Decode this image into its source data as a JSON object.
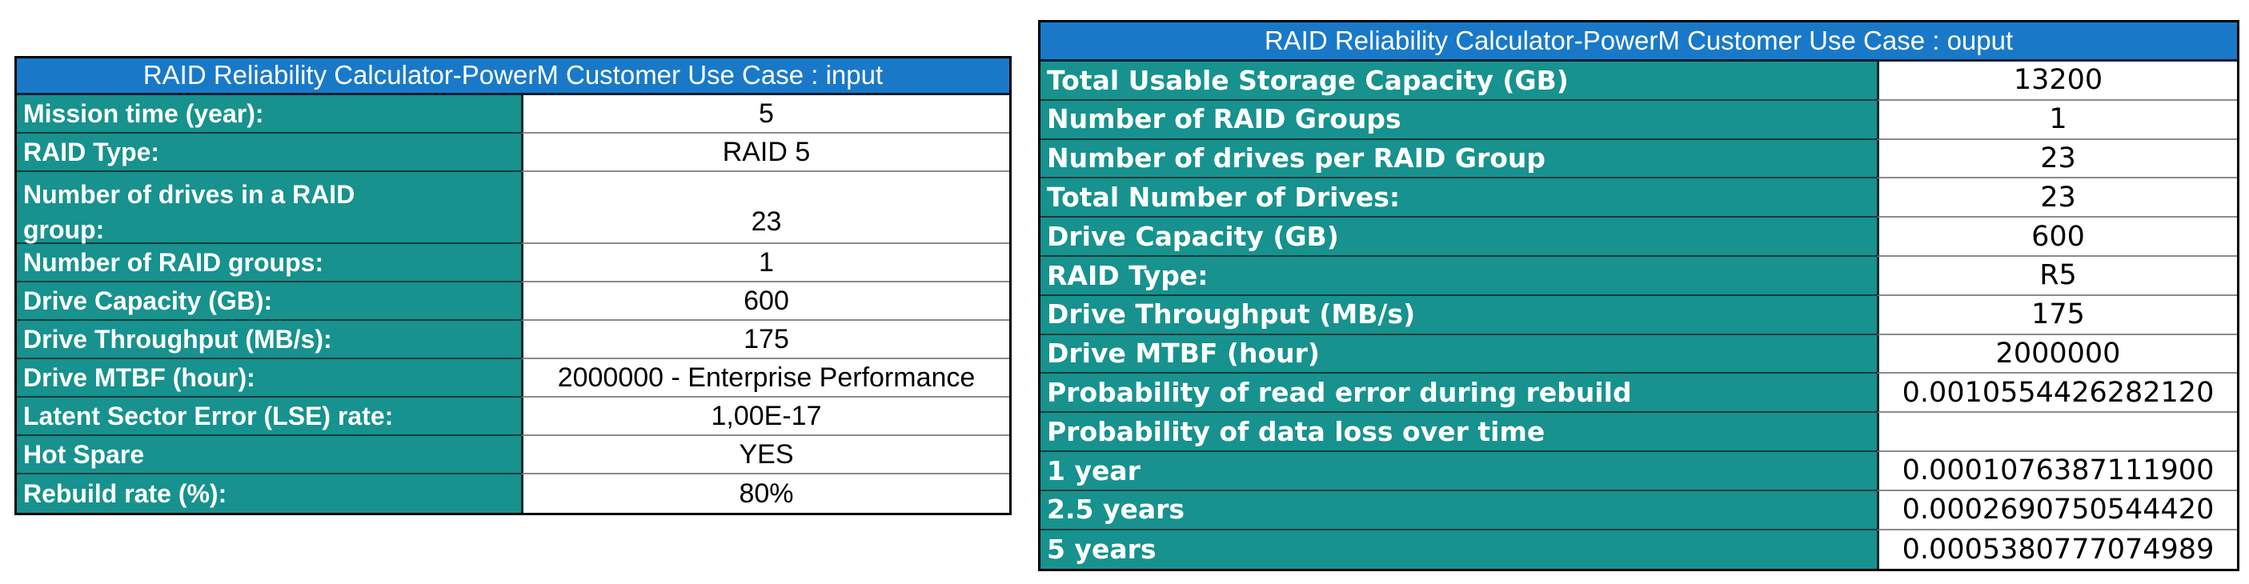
{
  "colors": {
    "header_blue": "#1979C8",
    "label_teal": "#17928E",
    "value_text": "#000000",
    "label_text": "#FFFFFF"
  },
  "input_table": {
    "title": "RAID Reliability Calculator-PowerM Customer Use Case : input",
    "rows": [
      {
        "label": "Mission time (year):",
        "value": "5"
      },
      {
        "label": "RAID Type:",
        "value": "RAID 5"
      },
      {
        "label": "Number of drives in a RAID\ngroup:",
        "value": "23"
      },
      {
        "label": "Number of RAID groups:",
        "value": "1"
      },
      {
        "label": "Drive Capacity (GB):",
        "value": "600"
      },
      {
        "label": "Drive Throughput (MB/s):",
        "value": "175"
      },
      {
        "label": "Drive MTBF (hour):",
        "value": "2000000 - Enterprise Performance"
      },
      {
        "label": "Latent Sector Error (LSE) rate:",
        "value": "1,00E-17"
      },
      {
        "label": "Hot Spare",
        "value": "YES"
      },
      {
        "label": "Rebuild rate (%):",
        "value": "80%"
      }
    ]
  },
  "output_table": {
    "title": "RAID Reliability Calculator-PowerM Customer Use Case : ouput",
    "rows": [
      {
        "label": "Total Usable Storage Capacity (GB)",
        "value": "13200"
      },
      {
        "label": "Number of RAID Groups",
        "value": "1"
      },
      {
        "label": "Number of drives per RAID Group",
        "value": "23"
      },
      {
        "label": "Total Number of Drives:",
        "value": "23"
      },
      {
        "label": "Drive Capacity (GB)",
        "value": "600"
      },
      {
        "label": "RAID Type:",
        "value": "R5"
      },
      {
        "label": "Drive Throughput (MB/s)",
        "value": "175"
      },
      {
        "label": "Drive MTBF (hour)",
        "value": "2000000"
      },
      {
        "label": "Probability of read error during rebuild",
        "value": "0.0010554426282120"
      },
      {
        "label": "Probability of data loss over time",
        "value": ""
      },
      {
        "label": "1 year",
        "value": "0.0001076387111900"
      },
      {
        "label": "2.5 years",
        "value": "0.0002690750544420"
      },
      {
        "label": "5 years",
        "value": "0.0005380777074989"
      }
    ]
  }
}
